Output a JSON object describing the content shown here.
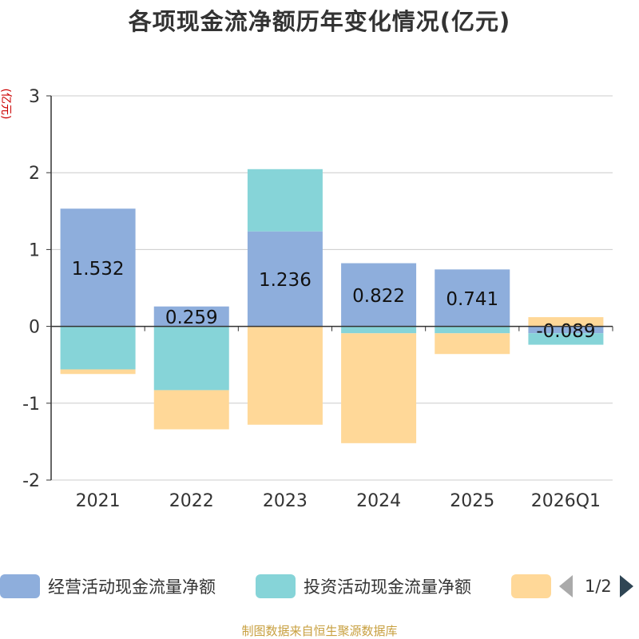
{
  "chart_data": {
    "type": "bar",
    "stacked": true,
    "title": "各项现金流净额历年变化情况(亿元)",
    "ylabel": "(亿元)",
    "categories": [
      "2021",
      "2022",
      "2023",
      "2024",
      "2025",
      "2026Q1"
    ],
    "ylim": [
      -2,
      3
    ],
    "yticks": [
      3,
      2,
      1,
      0,
      -1,
      -2
    ],
    "grid": true,
    "series": [
      {
        "name": "经营活动现金流量净额",
        "color": "#8eaedc",
        "values": [
          1.532,
          0.259,
          1.236,
          0.822,
          0.741,
          -0.089
        ],
        "labels": [
          "1.532",
          "0.259",
          "1.236",
          "0.822",
          "0.741",
          "-0.089"
        ]
      },
      {
        "name": "投资活动现金流量净额",
        "color": "#86d4d8",
        "values": [
          -0.56,
          -0.83,
          0.81,
          -0.09,
          -0.09,
          -0.15
        ]
      },
      {
        "name": "",
        "color": "#ffd898",
        "values": [
          -0.06,
          -0.51,
          -1.28,
          -1.43,
          -0.27,
          0.12
        ]
      }
    ],
    "legend_position": "bottom",
    "legend_page": "1/2"
  },
  "source": "制图数据来自恒生聚源数据库"
}
